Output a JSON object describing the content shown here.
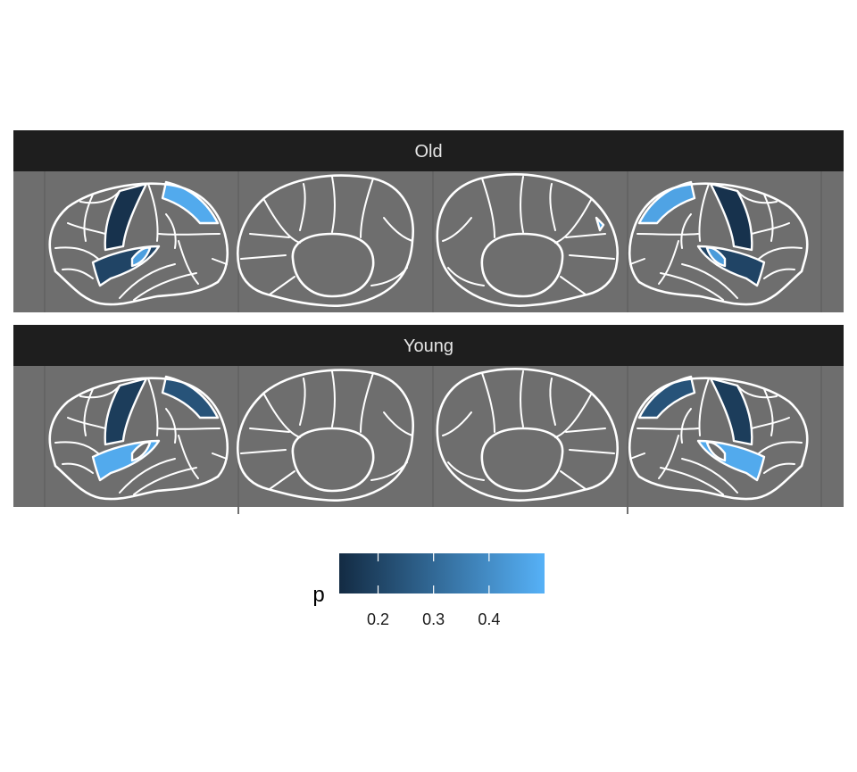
{
  "chart_data": {
    "type": "heatmap",
    "title": "",
    "facets": [
      {
        "label": "Old",
        "regions": [
          {
            "view": "lateral-left",
            "region": "precentral",
            "p": 0.15
          },
          {
            "view": "lateral-left",
            "region": "superiorparietal",
            "p": 0.48
          },
          {
            "view": "lateral-left",
            "region": "insula",
            "p": 0.2
          },
          {
            "view": "lateral-left",
            "region": "transversetemporal",
            "p": 0.45
          },
          {
            "view": "medial-right",
            "region": "cuneus",
            "p": 0.46
          },
          {
            "view": "lateral-right",
            "region": "precentral",
            "p": 0.15
          },
          {
            "view": "lateral-right",
            "region": "superiorparietal",
            "p": 0.46
          },
          {
            "view": "lateral-right",
            "region": "insula",
            "p": 0.2
          },
          {
            "view": "lateral-right",
            "region": "transversetemporal",
            "p": 0.44
          }
        ]
      },
      {
        "label": "Young",
        "regions": [
          {
            "view": "lateral-left",
            "region": "precentral",
            "p": 0.18
          },
          {
            "view": "lateral-left",
            "region": "superiorparietal",
            "p": 0.24
          },
          {
            "view": "lateral-left",
            "region": "insula",
            "p": 0.48
          },
          {
            "view": "lateral-right",
            "region": "precentral",
            "p": 0.18
          },
          {
            "view": "lateral-right",
            "region": "superiorparietal",
            "p": 0.24
          },
          {
            "view": "lateral-right",
            "region": "insula",
            "p": 0.48
          }
        ]
      }
    ],
    "colorbar": {
      "title": "p",
      "range": [
        0.13,
        0.5
      ],
      "ticks": [
        0.2,
        0.3,
        0.4
      ],
      "tick_labels": [
        "0.2",
        "0.3",
        "0.4"
      ],
      "low_color": "#132B43",
      "high_color": "#56B1F7"
    },
    "colors": {
      "panel_background": "#6e6e6e",
      "strip_background": "#1e1e1e",
      "region_na": "#6e6e6e",
      "outline": "#ffffff"
    }
  }
}
